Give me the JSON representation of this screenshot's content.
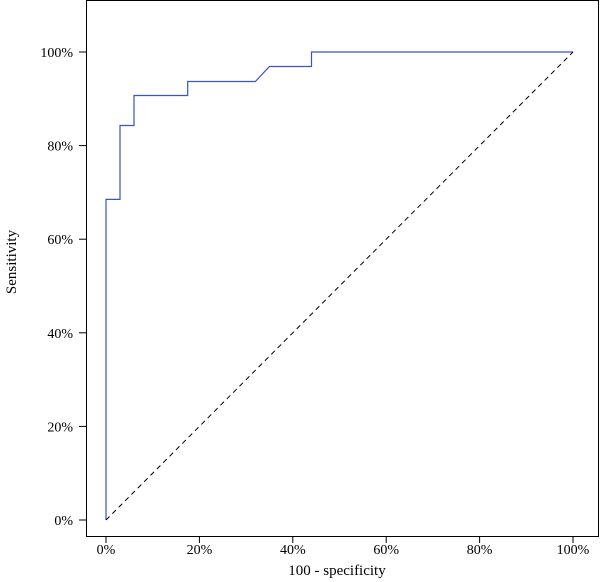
{
  "chart_data": {
    "type": "line",
    "title": "",
    "xlabel": "100 - specificity",
    "ylabel": "Sensitivity",
    "xlim": [
      0,
      100
    ],
    "ylim": [
      0,
      100
    ],
    "x_ticks": [
      "0%",
      "20%",
      "40%",
      "60%",
      "80%",
      "100%"
    ],
    "y_ticks": [
      "0%",
      "20%",
      "40%",
      "60%",
      "80%",
      "100%"
    ],
    "grid": false,
    "legend": "none",
    "series": [
      {
        "color": "#3a54c4",
        "style": "step",
        "x": [
          0,
          0,
          3,
          3,
          6,
          6,
          17.5,
          17.5,
          32,
          35,
          44,
          44,
          100
        ],
        "y": [
          0,
          68.5,
          68.5,
          84.3,
          84.3,
          90.7,
          90.7,
          93.7,
          93.7,
          96.9,
          96.9,
          100,
          100
        ]
      },
      {
        "color": "#000000",
        "style": "dashed",
        "x": [
          0,
          100
        ],
        "y": [
          0,
          100
        ]
      }
    ]
  }
}
